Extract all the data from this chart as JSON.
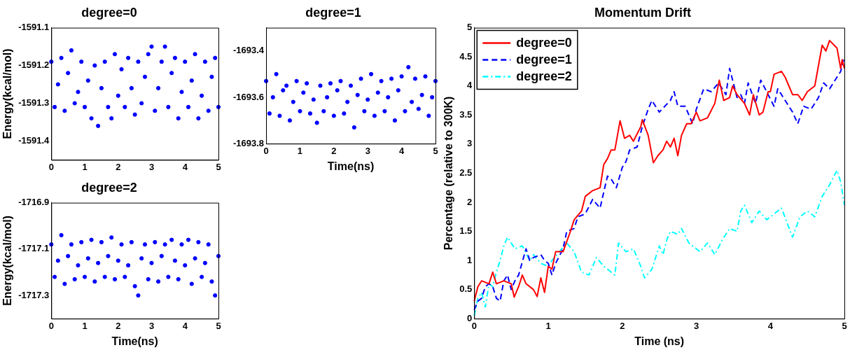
{
  "chart_data": [
    {
      "type": "scatter",
      "title": "degree=0",
      "ylabel": "Energy(kcal/mol)",
      "marker": "circle",
      "grid": false,
      "x": [
        0,
        0.1,
        0.2,
        0.3,
        0.4,
        0.5,
        0.6,
        0.7,
        0.8,
        0.9,
        1,
        1.1,
        1.2,
        1.3,
        1.4,
        1.5,
        1.6,
        1.7,
        1.8,
        1.9,
        2,
        2.1,
        2.2,
        2.3,
        2.4,
        2.5,
        2.6,
        2.7,
        2.8,
        2.9,
        3,
        3.1,
        3.2,
        3.3,
        3.4,
        3.5,
        3.6,
        3.7,
        3.8,
        3.9,
        4,
        4.1,
        4.2,
        4.3,
        4.4,
        4.5,
        4.6,
        4.7,
        4.8,
        4.9,
        5
      ],
      "series": [
        {
          "color": "#0000ff",
          "values": [
            -1591.19,
            -1591.31,
            -1591.25,
            -1591.18,
            -1591.32,
            -1591.22,
            -1591.16,
            -1591.3,
            -1591.27,
            -1591.19,
            -1591.31,
            -1591.24,
            -1591.34,
            -1591.2,
            -1591.36,
            -1591.26,
            -1591.19,
            -1591.31,
            -1591.34,
            -1591.17,
            -1591.28,
            -1591.21,
            -1591.31,
            -1591.18,
            -1591.26,
            -1591.33,
            -1591.19,
            -1591.3,
            -1591.23,
            -1591.17,
            -1591.15,
            -1591.32,
            -1591.26,
            -1591.19,
            -1591.15,
            -1591.31,
            -1591.22,
            -1591.18,
            -1591.34,
            -1591.27,
            -1591.19,
            -1591.31,
            -1591.24,
            -1591.17,
            -1591.34,
            -1591.28,
            -1591.19,
            -1591.32,
            -1591.23,
            -1591.18,
            -1591.31
          ]
        }
      ],
      "xlim": [
        0,
        5
      ],
      "xticks": [
        0,
        1,
        2,
        3,
        4,
        5
      ],
      "ylim": [
        -1591.45,
        -1591.1
      ],
      "yticks": [
        -1591.1,
        -1591.2,
        -1591.3,
        -1591.4
      ]
    },
    {
      "type": "scatter",
      "title": "degree=1",
      "xlabel": "Time(ns)",
      "marker": "circle",
      "grid": false,
      "x": [
        0,
        0.1,
        0.2,
        0.3,
        0.4,
        0.5,
        0.6,
        0.7,
        0.8,
        0.9,
        1,
        1.1,
        1.2,
        1.3,
        1.4,
        1.5,
        1.6,
        1.7,
        1.8,
        1.9,
        2,
        2.1,
        2.2,
        2.3,
        2.4,
        2.5,
        2.6,
        2.7,
        2.8,
        2.9,
        3,
        3.1,
        3.2,
        3.3,
        3.4,
        3.5,
        3.6,
        3.7,
        3.8,
        3.9,
        4,
        4.1,
        4.2,
        4.3,
        4.4,
        4.5,
        4.6,
        4.7,
        4.8,
        4.9,
        5
      ],
      "series": [
        {
          "color": "#0000ff",
          "values": [
            -1693.53,
            -1693.67,
            -1693.6,
            -1693.5,
            -1693.68,
            -1693.57,
            -1693.55,
            -1693.7,
            -1693.62,
            -1693.53,
            -1693.66,
            -1693.58,
            -1693.54,
            -1693.67,
            -1693.61,
            -1693.71,
            -1693.55,
            -1693.66,
            -1693.6,
            -1693.54,
            -1693.68,
            -1693.57,
            -1693.53,
            -1693.67,
            -1693.62,
            -1693.55,
            -1693.73,
            -1693.59,
            -1693.52,
            -1693.66,
            -1693.61,
            -1693.5,
            -1693.68,
            -1693.58,
            -1693.53,
            -1693.66,
            -1693.6,
            -1693.52,
            -1693.7,
            -1693.57,
            -1693.51,
            -1693.66,
            -1693.47,
            -1693.62,
            -1693.52,
            -1693.65,
            -1693.59,
            -1693.51,
            -1693.68,
            -1693.6,
            -1693.53
          ]
        }
      ],
      "xlim": [
        0,
        5
      ],
      "xticks": [
        0,
        1,
        2,
        3,
        4,
        5
      ],
      "ylim": [
        -1693.8,
        -1693.3
      ],
      "yticks": [
        -1693.4,
        -1693.6,
        -1693.8
      ]
    },
    {
      "type": "scatter",
      "title": "degree=2",
      "xlabel": "Time(ns)",
      "ylabel": "Energy(kcal/mol)",
      "marker": "circle",
      "grid": false,
      "x": [
        0,
        0.1,
        0.2,
        0.3,
        0.4,
        0.5,
        0.6,
        0.7,
        0.8,
        0.9,
        1,
        1.1,
        1.2,
        1.3,
        1.4,
        1.5,
        1.6,
        1.7,
        1.8,
        1.9,
        2,
        2.1,
        2.2,
        2.3,
        2.4,
        2.5,
        2.6,
        2.7,
        2.8,
        2.9,
        3,
        3.1,
        3.2,
        3.3,
        3.4,
        3.5,
        3.6,
        3.7,
        3.8,
        3.9,
        4,
        4.1,
        4.2,
        4.3,
        4.4,
        4.5,
        4.6,
        4.7,
        4.8,
        4.9,
        5
      ],
      "series": [
        {
          "color": "#0000ff",
          "values": [
            -1717.08,
            -1717.22,
            -1717.15,
            -1717.04,
            -1717.25,
            -1717.13,
            -1717.08,
            -1717.23,
            -1717.17,
            -1717.07,
            -1717.22,
            -1717.14,
            -1717.06,
            -1717.24,
            -1717.16,
            -1717.07,
            -1717.22,
            -1717.13,
            -1717.05,
            -1717.23,
            -1717.15,
            -1717.08,
            -1717.22,
            -1717.17,
            -1717.07,
            -1717.26,
            -1717.3,
            -1717.14,
            -1717.08,
            -1717.23,
            -1717.16,
            -1717.07,
            -1717.24,
            -1717.13,
            -1717.08,
            -1717.22,
            -1717.06,
            -1717.15,
            -1717.23,
            -1717.08,
            -1717.17,
            -1717.06,
            -1717.25,
            -1717.14,
            -1717.07,
            -1717.22,
            -1717.16,
            -1717.08,
            -1717.24,
            -1717.3,
            -1717.13
          ]
        }
      ],
      "xlim": [
        0,
        5
      ],
      "xticks": [
        0,
        1,
        2,
        3,
        4,
        5
      ],
      "ylim": [
        -1717.4,
        -1716.9
      ],
      "yticks": [
        -1716.9,
        -1717.1,
        -1717.3
      ]
    },
    {
      "type": "line",
      "title": "Momentum Drift",
      "xlabel": "Time (ns)",
      "ylabel": "Percentage (relative to 300K)",
      "marker": "none",
      "grid": false,
      "legend": "top left",
      "series": [
        {
          "name": "degree=0",
          "color": "#ff0000",
          "line_style": "solid",
          "x": [
            0,
            0.05,
            0.1,
            0.2,
            0.25,
            0.3,
            0.4,
            0.5,
            0.54,
            0.6,
            0.65,
            0.7,
            0.8,
            0.85,
            0.9,
            0.95,
            1.0,
            1.05,
            1.1,
            1.2,
            1.3,
            1.35,
            1.45,
            1.5,
            1.6,
            1.7,
            1.75,
            1.8,
            1.85,
            1.9,
            1.97,
            2.03,
            2.1,
            2.15,
            2.25,
            2.27,
            2.35,
            2.42,
            2.48,
            2.55,
            2.6,
            2.65,
            2.7,
            2.75,
            2.8,
            2.87,
            2.93,
            3.0,
            3.05,
            3.15,
            3.25,
            3.31,
            3.37,
            3.45,
            3.49,
            3.55,
            3.65,
            3.72,
            3.77,
            3.85,
            3.9,
            3.97,
            4.0,
            4.05,
            4.15,
            4.2,
            4.3,
            4.37,
            4.43,
            4.5,
            4.6,
            4.7,
            4.75,
            4.8,
            4.9,
            4.95,
            4.97,
            5.0
          ],
          "values": [
            0.3,
            0.55,
            0.65,
            0.6,
            0.8,
            0.6,
            0.65,
            0.6,
            0.37,
            0.55,
            0.75,
            0.6,
            0.5,
            0.38,
            0.7,
            0.45,
            0.9,
            0.85,
            1.15,
            1.15,
            1.5,
            1.7,
            1.85,
            2.1,
            2.2,
            2.25,
            2.65,
            2.75,
            2.9,
            2.9,
            3.4,
            3.1,
            3.15,
            3.05,
            3.3,
            3.42,
            3.15,
            2.68,
            2.8,
            2.9,
            3.05,
            2.95,
            3.1,
            2.8,
            3.15,
            3.35,
            3.35,
            3.55,
            3.4,
            3.45,
            3.7,
            4.1,
            3.75,
            3.8,
            4.0,
            3.85,
            3.7,
            3.5,
            3.85,
            3.5,
            3.55,
            3.9,
            3.9,
            4.2,
            4.25,
            4.15,
            3.85,
            3.85,
            3.75,
            3.9,
            4.0,
            4.7,
            4.6,
            4.78,
            4.65,
            4.3,
            4.45,
            4.3
          ]
        },
        {
          "name": "degree=1",
          "color": "#0000ff",
          "line_style": "dashed",
          "x": [
            0,
            0.05,
            0.1,
            0.15,
            0.2,
            0.25,
            0.3,
            0.35,
            0.4,
            0.45,
            0.5,
            0.55,
            0.6,
            0.7,
            0.75,
            0.8,
            0.9,
            0.95,
            1.0,
            1.05,
            1.1,
            1.2,
            1.25,
            1.35,
            1.4,
            1.5,
            1.6,
            1.7,
            1.8,
            1.85,
            1.92,
            2.0,
            2.05,
            2.1,
            2.2,
            2.27,
            2.35,
            2.4,
            2.5,
            2.65,
            2.7,
            2.75,
            2.85,
            2.9,
            2.95,
            3.0,
            3.1,
            3.2,
            3.3,
            3.4,
            3.45,
            3.55,
            3.6,
            3.65,
            3.7,
            3.8,
            3.87,
            3.95,
            4.05,
            4.1,
            4.2,
            4.3,
            4.37,
            4.45,
            4.55,
            4.65,
            4.72,
            4.8,
            4.9,
            4.95,
            5.0
          ],
          "values": [
            0.15,
            0.3,
            0.35,
            0.55,
            0.6,
            0.55,
            0.35,
            0.3,
            0.65,
            0.75,
            0.5,
            0.65,
            0.75,
            1.2,
            1.0,
            1.05,
            1.1,
            1.0,
            0.95,
            0.75,
            0.95,
            1.2,
            1.5,
            1.55,
            1.75,
            1.8,
            2.05,
            1.9,
            2.45,
            2.4,
            2.25,
            2.6,
            2.7,
            2.9,
            2.95,
            3.3,
            3.6,
            3.75,
            3.55,
            3.75,
            3.9,
            3.65,
            3.65,
            3.5,
            3.35,
            3.6,
            3.95,
            3.9,
            4.05,
            3.85,
            4.3,
            3.8,
            3.85,
            3.7,
            4.05,
            3.7,
            4.1,
            3.9,
            3.65,
            3.95,
            3.75,
            3.55,
            3.35,
            3.65,
            3.6,
            3.8,
            4.05,
            3.95,
            4.15,
            4.25,
            4.5
          ]
        },
        {
          "name": "degree=2",
          "color": "#00ffff",
          "line_style": "dashdot",
          "x": [
            0,
            0.05,
            0.1,
            0.15,
            0.2,
            0.25,
            0.3,
            0.35,
            0.4,
            0.45,
            0.55,
            0.65,
            0.75,
            0.8,
            0.9,
            1.0,
            1.05,
            1.15,
            1.25,
            1.35,
            1.45,
            1.55,
            1.65,
            1.75,
            1.85,
            1.9,
            1.95,
            2.05,
            2.15,
            2.25,
            2.3,
            2.4,
            2.5,
            2.55,
            2.6,
            2.65,
            2.75,
            2.8,
            2.9,
            3.05,
            3.15,
            3.25,
            3.35,
            3.45,
            3.55,
            3.6,
            3.65,
            3.75,
            3.85,
            3.95,
            4.05,
            4.15,
            4.3,
            4.4,
            4.5,
            4.6,
            4.7,
            4.8,
            4.9,
            4.95,
            5.0
          ],
          "values": [
            0.05,
            0.35,
            0.45,
            0.2,
            0.6,
            0.55,
            0.8,
            1.0,
            1.25,
            1.4,
            1.2,
            1.25,
            1.0,
            1.1,
            0.95,
            0.9,
            1.0,
            1.15,
            1.3,
            1.15,
            0.8,
            0.75,
            1.05,
            0.9,
            0.8,
            0.75,
            1.3,
            1.15,
            1.2,
            0.9,
            0.7,
            0.85,
            1.25,
            1.1,
            1.35,
            1.5,
            1.45,
            1.55,
            1.3,
            1.15,
            1.3,
            1.1,
            1.35,
            1.55,
            1.5,
            1.85,
            1.95,
            1.65,
            1.85,
            1.7,
            1.8,
            1.9,
            1.4,
            1.75,
            1.85,
            1.75,
            2.1,
            2.3,
            2.55,
            2.35,
            1.95
          ]
        }
      ],
      "xlim": [
        0,
        5
      ],
      "xticks": [
        0,
        1,
        2,
        3,
        4,
        5
      ],
      "ylim": [
        0,
        5
      ],
      "yticks": [
        0,
        0.5,
        1,
        1.5,
        2,
        2.5,
        3,
        3.5,
        4,
        4.5,
        5
      ]
    }
  ]
}
